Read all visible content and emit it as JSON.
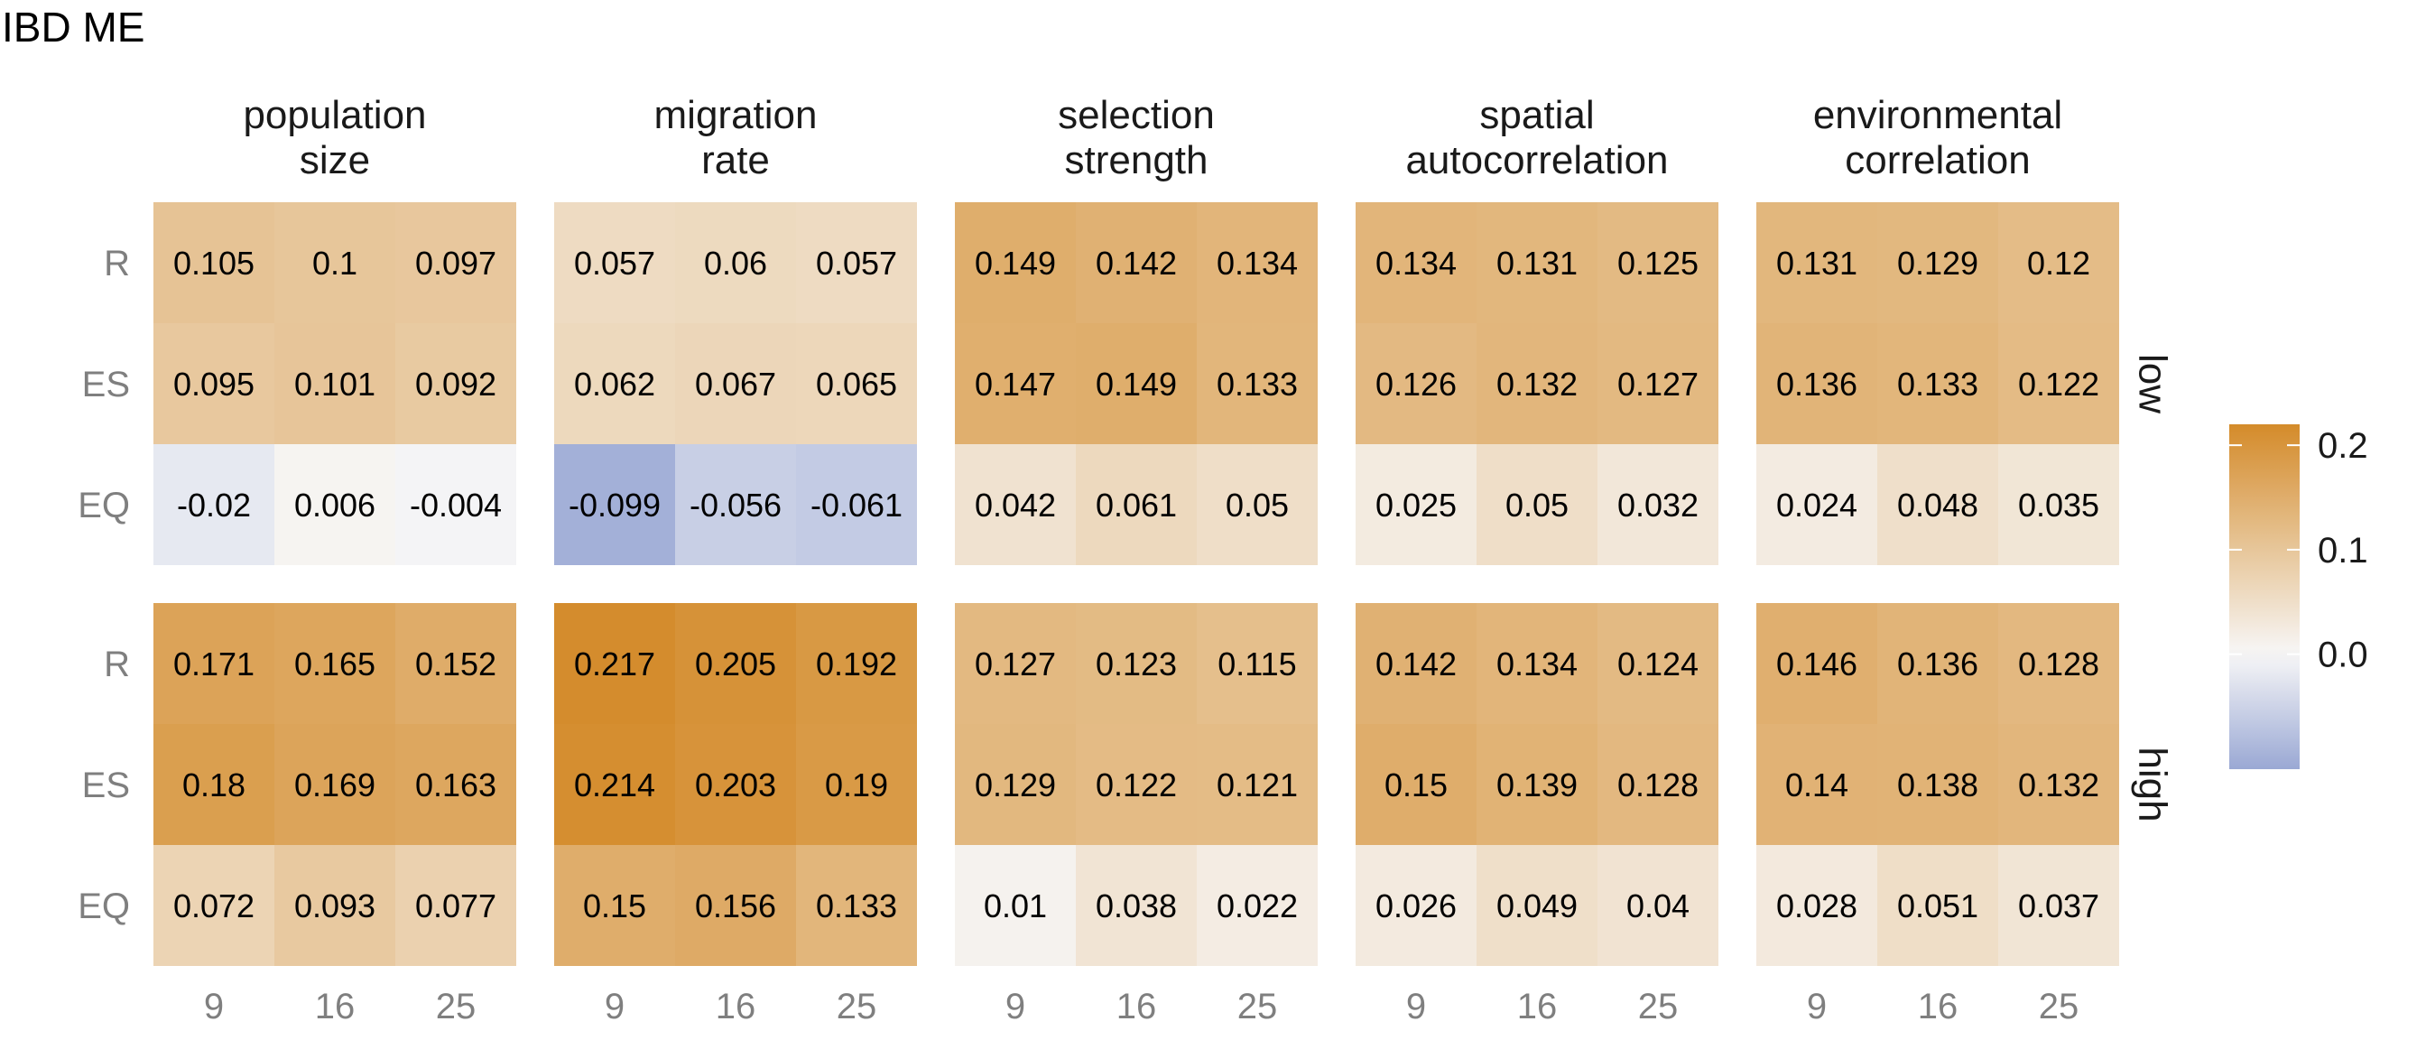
{
  "chart_data": {
    "type": "heatmap",
    "title": "IBD ME",
    "columns": [
      "population\nsize",
      "migration\nrate",
      "selection\nstrength",
      "spatial\nautocorrelation",
      "environmental\ncorrelation"
    ],
    "rows": [
      "low",
      "high"
    ],
    "x_ticks": [
      "9",
      "16",
      "25"
    ],
    "y_ticks": [
      "R",
      "ES",
      "EQ"
    ],
    "values": {
      "low": [
        [
          [
            0.105,
            0.1,
            0.097
          ],
          [
            0.095,
            0.101,
            0.092
          ],
          [
            -0.02,
            0.006,
            -0.004
          ]
        ],
        [
          [
            0.057,
            0.06,
            0.057
          ],
          [
            0.062,
            0.067,
            0.065
          ],
          [
            -0.099,
            -0.056,
            -0.061
          ]
        ],
        [
          [
            0.149,
            0.142,
            0.134
          ],
          [
            0.147,
            0.149,
            0.133
          ],
          [
            0.042,
            0.061,
            0.05
          ]
        ],
        [
          [
            0.134,
            0.131,
            0.125
          ],
          [
            0.126,
            0.132,
            0.127
          ],
          [
            0.025,
            0.05,
            0.032
          ]
        ],
        [
          [
            0.131,
            0.129,
            0.12
          ],
          [
            0.136,
            0.133,
            0.122
          ],
          [
            0.024,
            0.048,
            0.035
          ]
        ]
      ],
      "high": [
        [
          [
            0.171,
            0.165,
            0.152
          ],
          [
            0.18,
            0.169,
            0.163
          ],
          [
            0.072,
            0.093,
            0.077
          ]
        ],
        [
          [
            0.217,
            0.205,
            0.192
          ],
          [
            0.214,
            0.203,
            0.19
          ],
          [
            0.15,
            0.156,
            0.133
          ]
        ],
        [
          [
            0.127,
            0.123,
            0.115
          ],
          [
            0.129,
            0.122,
            0.121
          ],
          [
            0.01,
            0.038,
            0.022
          ]
        ],
        [
          [
            0.142,
            0.134,
            0.124
          ],
          [
            0.15,
            0.139,
            0.128
          ],
          [
            0.026,
            0.049,
            0.04
          ]
        ],
        [
          [
            0.146,
            0.136,
            0.128
          ],
          [
            0.14,
            0.138,
            0.132
          ],
          [
            0.028,
            0.051,
            0.037
          ]
        ]
      ]
    },
    "color_scale": {
      "low_color": "#9aa8d4",
      "mid_color": "#f7f7f7",
      "high_color": "#d48b2a",
      "domain": [
        -0.11,
        0.0,
        0.22
      ],
      "ticks": [
        "0.2",
        "0.1",
        "0.0"
      ]
    }
  }
}
